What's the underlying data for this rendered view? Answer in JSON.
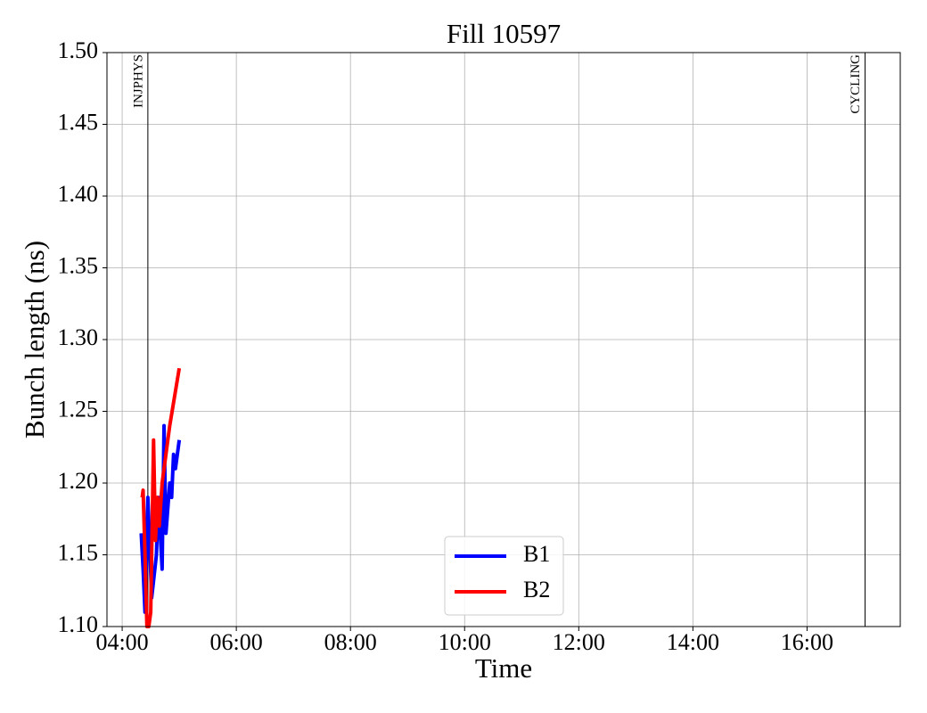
{
  "chart_data": {
    "type": "line",
    "title": "Fill 10597",
    "xlabel": "Time",
    "ylabel": "Bunch length (ns)",
    "xlim": [
      "03:44",
      "17:38"
    ],
    "xticks": [
      "04:00",
      "06:00",
      "08:00",
      "10:00",
      "12:00",
      "14:00",
      "16:00"
    ],
    "ylim": [
      1.1,
      1.5
    ],
    "yticks": [
      {
        "value": 1.1,
        "label": "1.10"
      },
      {
        "value": 1.15,
        "label": "1.15"
      },
      {
        "value": 1.2,
        "label": "1.20"
      },
      {
        "value": 1.25,
        "label": "1.25"
      },
      {
        "value": 1.3,
        "label": "1.30"
      },
      {
        "value": 1.35,
        "label": "1.35"
      },
      {
        "value": 1.4,
        "label": "1.40"
      },
      {
        "value": 1.45,
        "label": "1.45"
      },
      {
        "value": 1.5,
        "label": "1.50"
      }
    ],
    "grid": true,
    "legend": "lower center",
    "vlines": [
      {
        "x": "04:27",
        "label": "INJPHYS",
        "color": "#000000"
      },
      {
        "x": "17:01",
        "label": "CYCLING",
        "color": "#000000"
      }
    ],
    "series": [
      {
        "name": "B1",
        "color": "#0000ff",
        "x": [
          "04:20",
          "04:22",
          "04:24",
          "04:27",
          "04:31",
          "04:36",
          "04:38",
          "04:42",
          "04:44",
          "04:46",
          "04:50",
          "04:52",
          "04:54",
          "04:56",
          "05:00"
        ],
        "values": [
          1.165,
          1.14,
          1.11,
          1.19,
          1.12,
          1.15,
          1.19,
          1.14,
          1.24,
          1.165,
          1.2,
          1.19,
          1.22,
          1.21,
          1.23
        ]
      },
      {
        "name": "B2",
        "color": "#ff0000",
        "x": [
          "04:21",
          "04:22",
          "04:24",
          "04:26",
          "04:28",
          "04:30",
          "04:33",
          "04:35",
          "04:37",
          "04:39",
          "04:42",
          "04:46",
          "04:50",
          "04:55",
          "05:00"
        ],
        "values": [
          1.19,
          1.195,
          1.15,
          1.1,
          1.1,
          1.11,
          1.23,
          1.16,
          1.19,
          1.17,
          1.2,
          1.22,
          1.24,
          1.26,
          1.28
        ]
      }
    ]
  }
}
